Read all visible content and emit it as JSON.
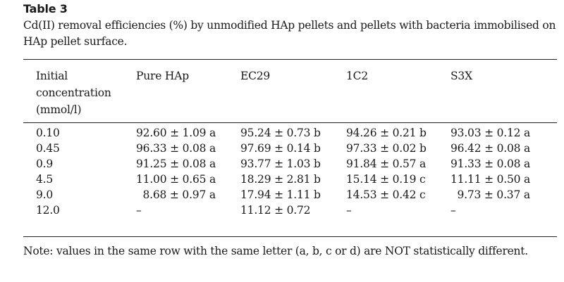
{
  "table": {
    "label": "Table 3",
    "caption": "Cd(II) removal efficiencies (%) by unmodified HAp pellets and pellets with bacteria immobilised on HAp pellet surface.",
    "headers": [
      [
        "Initial",
        "concentration",
        "(mmol/l)"
      ],
      [
        "Pure HAp"
      ],
      [
        "EC29"
      ],
      [
        "1C2"
      ],
      [
        "S3X"
      ]
    ],
    "rows": [
      [
        "0.10",
        "92.60 ± 1.09 a",
        "95.24 ± 0.73 b",
        "94.26 ± 0.21 b",
        "93.03 ± 0.12 a"
      ],
      [
        "0.45",
        "96.33 ± 0.08 a",
        "97.69 ± 0.14 b",
        "97.33 ± 0.02 b",
        "96.42 ± 0.08 a"
      ],
      [
        "0.9",
        "91.25 ± 0.08 a",
        "93.77 ± 1.03 b",
        "91.84 ± 0.57 a",
        "91.33 ± 0.08 a"
      ],
      [
        "4.5",
        "11.00 ± 0.65 a",
        "18.29 ± 2.81 b",
        "15.14 ± 0.19 c",
        "11.11 ± 0.50 a"
      ],
      [
        "9.0",
        "  8.68 ± 0.97 a",
        "17.94 ± 1.11 b",
        "14.53 ± 0.42 c",
        "  9.73 ± 0.37 a"
      ],
      [
        "12.0",
        "–",
        "11.12 ± 0.72",
        "–",
        "–"
      ]
    ],
    "note": "Note: values in the same row with the same letter (a, b, c or d) are NOT statistically different."
  }
}
